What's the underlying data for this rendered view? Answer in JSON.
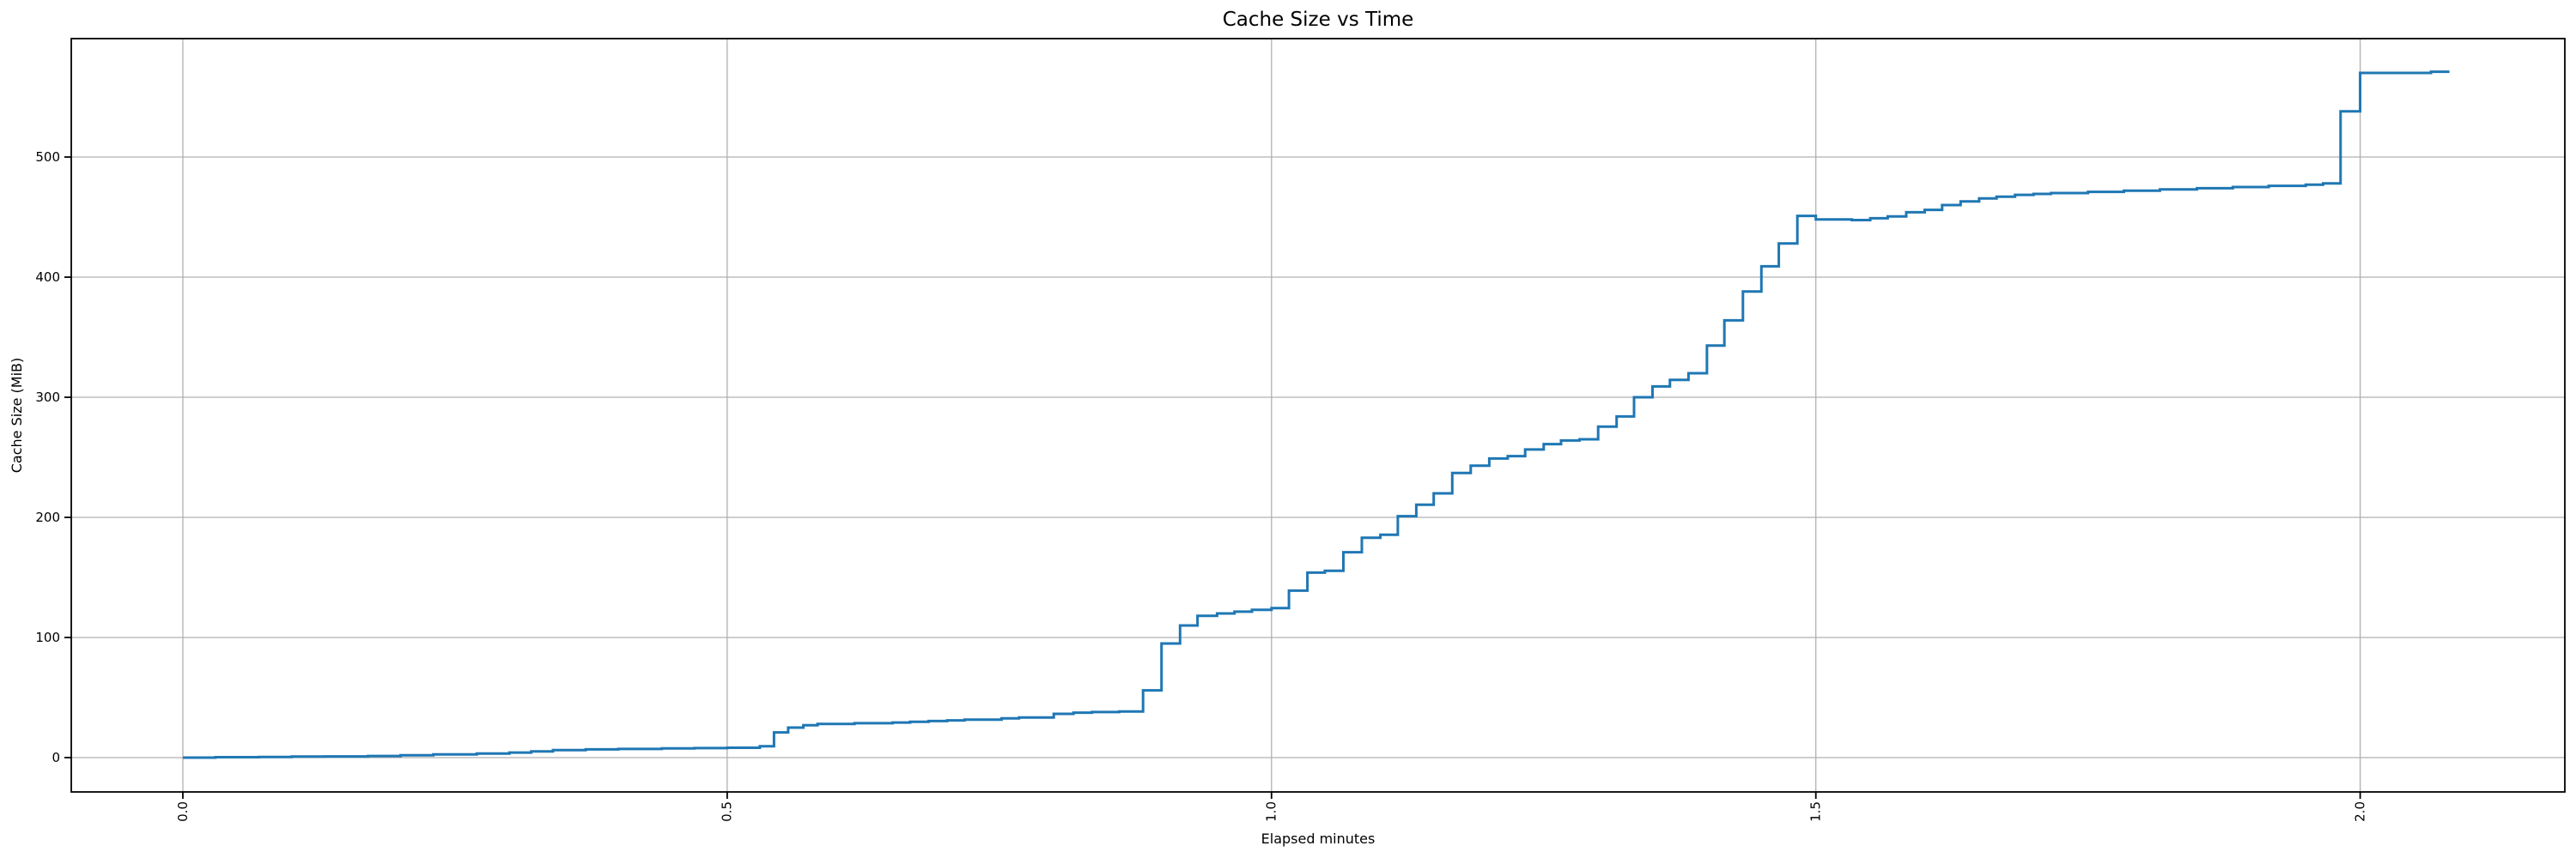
{
  "chart": {
    "background_color": "#ffffff",
    "axes_edge_color": "#000000",
    "text_color": "#000000"
  },
  "chart_data": {
    "type": "line",
    "step_style": "post",
    "title": "Cache Size vs Time",
    "xlabel": "Elapsed minutes",
    "ylabel": "Cache Size (MiB)",
    "series_name": "cache-size",
    "line_color": "#1f77b4",
    "grid_color": "#b0b0b0",
    "grid": true,
    "legend": false,
    "xlim": [
      -0.1025,
      2.188
    ],
    "ylim": [
      -28.6,
      598.6
    ],
    "x_ticks": [
      0.0,
      0.5,
      1.0,
      1.5,
      2.0
    ],
    "x_tick_labels": [
      "0.0",
      "0.5",
      "1.0",
      "1.5",
      "2.0"
    ],
    "x_tick_rotation_deg": 90,
    "y_ticks": [
      0,
      100,
      200,
      300,
      400,
      500
    ],
    "y_tick_labels": [
      "0",
      "100",
      "200",
      "300",
      "400",
      "500"
    ],
    "points": [
      [
        0.0,
        0
      ],
      [
        0.03,
        0.3
      ],
      [
        0.07,
        0.5
      ],
      [
        0.1,
        0.8
      ],
      [
        0.13,
        1.0
      ],
      [
        0.17,
        1.3
      ],
      [
        0.2,
        2.0
      ],
      [
        0.23,
        2.6
      ],
      [
        0.27,
        3.3
      ],
      [
        0.3,
        4.2
      ],
      [
        0.32,
        5.2
      ],
      [
        0.34,
        6.2
      ],
      [
        0.37,
        6.8
      ],
      [
        0.4,
        7.2
      ],
      [
        0.44,
        7.6
      ],
      [
        0.47,
        7.9
      ],
      [
        0.5,
        8.2
      ],
      [
        0.53,
        9.5
      ],
      [
        0.543,
        21
      ],
      [
        0.556,
        25
      ],
      [
        0.57,
        27
      ],
      [
        0.583,
        28
      ],
      [
        0.617,
        28.6
      ],
      [
        0.652,
        29.2
      ],
      [
        0.668,
        29.8
      ],
      [
        0.685,
        30.4
      ],
      [
        0.702,
        31.0
      ],
      [
        0.718,
        31.6
      ],
      [
        0.752,
        32.6
      ],
      [
        0.768,
        33.4
      ],
      [
        0.8,
        36.4
      ],
      [
        0.818,
        37.4
      ],
      [
        0.835,
        37.9
      ],
      [
        0.86,
        38.3
      ],
      [
        0.882,
        56
      ],
      [
        0.899,
        95
      ],
      [
        0.916,
        110
      ],
      [
        0.932,
        118
      ],
      [
        0.95,
        120
      ],
      [
        0.966,
        121.5
      ],
      [
        0.982,
        123
      ],
      [
        1.0,
        124.5
      ],
      [
        1.016,
        139
      ],
      [
        1.033,
        154
      ],
      [
        1.049,
        155.5
      ],
      [
        1.066,
        171
      ],
      [
        1.083,
        183
      ],
      [
        1.1,
        185.5
      ],
      [
        1.116,
        201
      ],
      [
        1.133,
        210.5
      ],
      [
        1.149,
        220
      ],
      [
        1.166,
        237
      ],
      [
        1.183,
        243
      ],
      [
        1.2,
        249
      ],
      [
        1.217,
        251
      ],
      [
        1.233,
        256.5
      ],
      [
        1.25,
        261
      ],
      [
        1.266,
        264
      ],
      [
        1.283,
        265
      ],
      [
        1.3,
        275.5
      ],
      [
        1.317,
        284
      ],
      [
        1.333,
        300
      ],
      [
        1.35,
        309
      ],
      [
        1.366,
        314.5
      ],
      [
        1.383,
        320
      ],
      [
        1.4,
        343
      ],
      [
        1.416,
        364
      ],
      [
        1.433,
        388
      ],
      [
        1.45,
        409
      ],
      [
        1.466,
        428
      ],
      [
        1.483,
        451
      ],
      [
        1.5,
        448
      ],
      [
        1.533,
        447.5
      ],
      [
        1.55,
        449
      ],
      [
        1.566,
        450.5
      ],
      [
        1.583,
        454
      ],
      [
        1.6,
        456
      ],
      [
        1.616,
        460
      ],
      [
        1.633,
        463
      ],
      [
        1.65,
        465.5
      ],
      [
        1.666,
        467
      ],
      [
        1.683,
        468.5
      ],
      [
        1.7,
        469.3
      ],
      [
        1.716,
        470
      ],
      [
        1.75,
        471
      ],
      [
        1.783,
        472
      ],
      [
        1.816,
        473
      ],
      [
        1.85,
        474
      ],
      [
        1.883,
        475
      ],
      [
        1.916,
        476
      ],
      [
        1.95,
        477
      ],
      [
        1.966,
        478
      ],
      [
        1.982,
        538
      ],
      [
        2.0,
        570
      ],
      [
        2.065,
        571
      ],
      [
        2.082,
        571
      ]
    ]
  }
}
